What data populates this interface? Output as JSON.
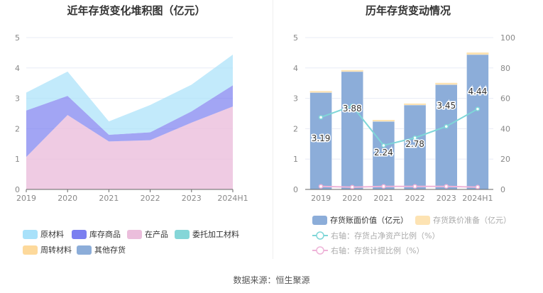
{
  "colors": {
    "原材料": "#a8e1fa",
    "库存商品": "#7b7ff0",
    "在产品": "#ebbedc",
    "委托加工材料": "#85d6d8",
    "周转材料": "#fdd99b",
    "其他存货": "#8cadd9",
    "reserve": "#fde3b3",
    "line_ratio": "#7fd6d8",
    "line_provision": "#eeb3d8"
  },
  "source": "数据来源：恒生聚源",
  "chart_data": [
    {
      "type": "area",
      "title": "近年存货变化堆积图（亿元）",
      "categories": [
        "2019",
        "2020",
        "2021",
        "2022",
        "2023",
        "2024H1"
      ],
      "ylim": [
        0,
        5
      ],
      "yticks": [
        "0",
        "1",
        "2",
        "3",
        "4",
        "5"
      ],
      "stacked": true,
      "grid": true,
      "legend_position": "bottom",
      "series": [
        {
          "name": "在产品",
          "values": [
            1.07,
            2.45,
            1.58,
            1.62,
            2.2,
            2.73
          ]
        },
        {
          "name": "库存商品",
          "values": [
            1.53,
            0.63,
            0.22,
            0.26,
            0.37,
            0.7
          ]
        },
        {
          "name": "原材料",
          "values": [
            0.59,
            0.8,
            0.44,
            0.9,
            0.88,
            1.01
          ]
        }
      ],
      "legend": [
        "原材料",
        "库存商品",
        "在产品",
        "委托加工材料",
        "周转材料",
        "其他存货"
      ]
    },
    {
      "type": "bar",
      "title": "历年存货变动情况",
      "categories": [
        "2019",
        "2020",
        "2021",
        "2022",
        "2023",
        "2024H1"
      ],
      "ylim": [
        0,
        5
      ],
      "yticks": [
        "0",
        "1",
        "2",
        "3",
        "4",
        "5"
      ],
      "y2lim": [
        0,
        100
      ],
      "y2ticks": [
        "0",
        "20",
        "40",
        "60",
        "80",
        "100"
      ],
      "grid": true,
      "legend_position": "bottom",
      "series": [
        {
          "name": "存货账面价值（亿元）",
          "type": "bar",
          "values": [
            3.19,
            3.88,
            2.24,
            2.78,
            3.45,
            4.44
          ],
          "labels": [
            "3.19",
            "3.88",
            "2.24",
            "2.78",
            "3.45",
            "4.44"
          ]
        },
        {
          "name": "存货跌价准备（亿元）",
          "type": "bar",
          "values": [
            0.05,
            0.05,
            0.05,
            0.05,
            0.06,
            0.07
          ]
        },
        {
          "name": "右轴：存货占净资产比例（%）",
          "type": "line",
          "axis": "right",
          "values": [
            47.5,
            55,
            29,
            34,
            41.5,
            53
          ]
        },
        {
          "name": "右轴：存货计提比例（%）",
          "type": "line",
          "axis": "right",
          "values": [
            2,
            1.5,
            2,
            2,
            2,
            1.5
          ]
        }
      ]
    }
  ]
}
